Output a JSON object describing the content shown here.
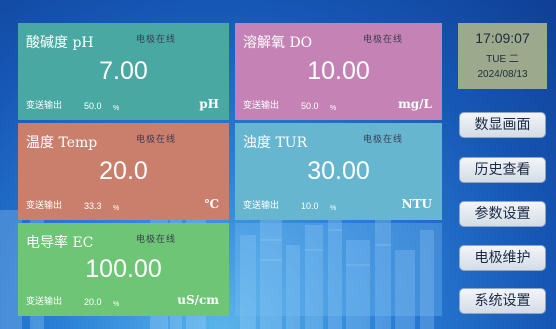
{
  "cards": {
    "ph": {
      "name": "酸碱度  pH",
      "status": "电极在线",
      "value": "7.00",
      "output_label": "变送输出",
      "output_value": "50.0",
      "output_unit": "%",
      "unit": "pH"
    },
    "do": {
      "name": "溶解氧  DO",
      "status": "电极在线",
      "value": "10.00",
      "output_label": "变送输出",
      "output_value": "50.0",
      "output_unit": "%",
      "unit": "mg/L"
    },
    "temp": {
      "name": "温度  Temp",
      "status": "电极在线",
      "value": "20.0",
      "output_label": "变送输出",
      "output_value": "33.3",
      "output_unit": "%",
      "unit": "℃"
    },
    "tur": {
      "name": "浊度  TUR",
      "status": "电极在线",
      "value": "30.00",
      "output_label": "变送输出",
      "output_value": "10.0",
      "output_unit": "%",
      "unit": "NTU"
    },
    "ec": {
      "name": "电导率  EC",
      "status": "电极在线",
      "value": "100.00",
      "output_label": "变送输出",
      "output_value": "20.0",
      "output_unit": "%",
      "unit": "uS/cm"
    }
  },
  "clock": {
    "time": "17:09:07",
    "day": "TUE 二",
    "date": "2024/08/13"
  },
  "nav": {
    "data_screen": "数显画面",
    "history": "历史查看",
    "params": "参数设置",
    "electrode": "电极维护",
    "system": "系统设置"
  },
  "colors": {
    "ph_card": "#4aa8a2",
    "do_card": "#c483b4",
    "temp_card": "#ca7f6d",
    "tur_card": "#66b6d0",
    "ec_card": "#6ec575",
    "clock_panel": "#9ca98d"
  }
}
